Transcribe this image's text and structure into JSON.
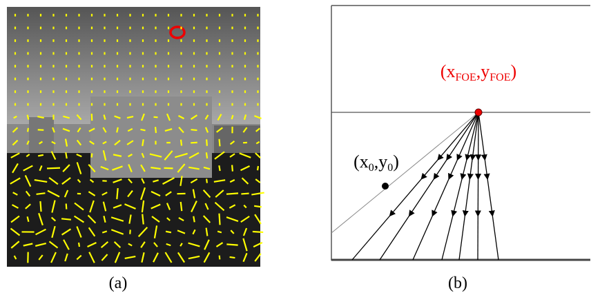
{
  "panel_a": {
    "caption": "(a)"
  },
  "panel_b": {
    "caption": "(b)",
    "foe_label": [
      "(x",
      "FOE",
      ",y",
      "FOE",
      ")"
    ],
    "point_label": [
      "(x",
      "0",
      ",y",
      "0",
      ")"
    ]
  }
}
